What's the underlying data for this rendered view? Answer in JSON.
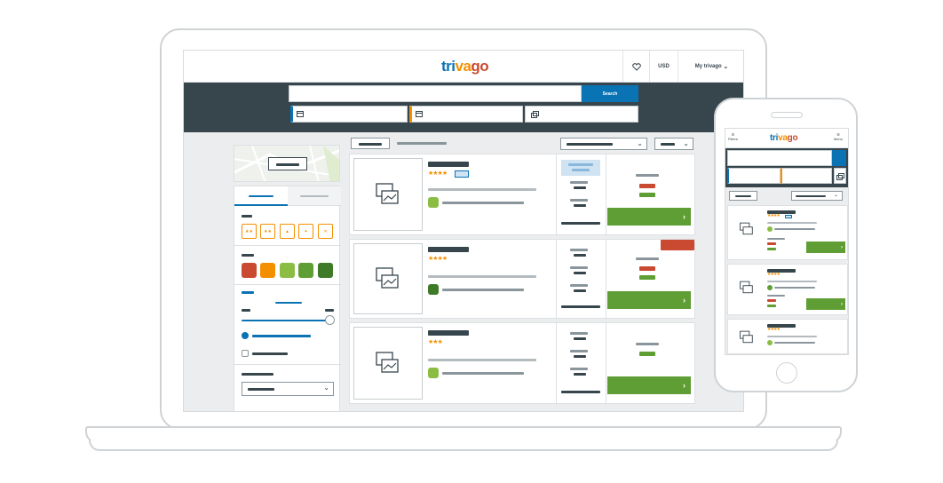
{
  "brand": {
    "logo_text_1": "tri",
    "logo_text_2": "va",
    "logo_text_3": "go"
  },
  "header": {
    "currency": "USD",
    "account_label": "My trivago",
    "heart_icon": "heart-icon"
  },
  "search": {
    "button_label": "Search",
    "calendar_icon": "calendar-icon",
    "guests_icon": "guests-icon"
  },
  "colors": {
    "blue": "#0a73b4",
    "orange": "#f48f00",
    "red": "#c94a30",
    "green": "#5f9e34",
    "dark": "#37454d"
  },
  "results": [
    {
      "stars": "★★★★",
      "has_badge": true
    },
    {
      "stars": "★★★★",
      "has_badge": false
    },
    {
      "stars": "★★★",
      "has_badge": false
    }
  ],
  "phone": {
    "filters_label": "Filters",
    "menu_label": "Menu"
  },
  "arrow": "›"
}
